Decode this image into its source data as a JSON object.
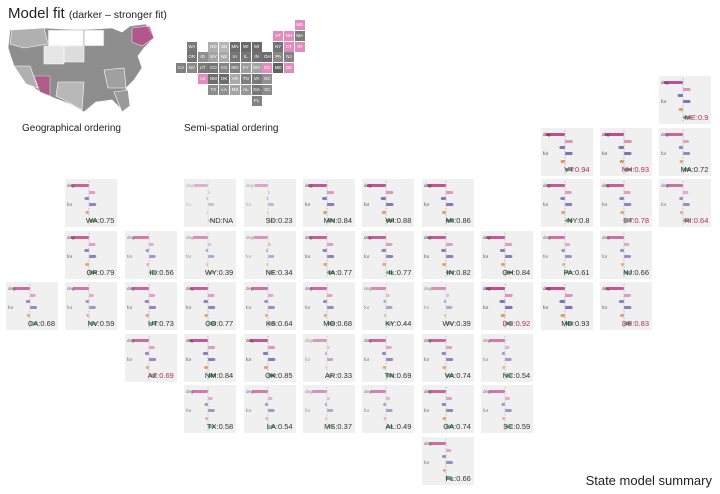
{
  "title": "Model fit",
  "subtitle": "(darker – stronger fit)",
  "captions": {
    "geo": "Geographical ordering",
    "semi": "Semi-spatial ordering"
  },
  "footer": "State model summary",
  "colors": {
    "deg": "#c2418a",
    "gov": "#e08cbd",
    "old": "#7b6bb6",
    "for": "#7b6bb6",
    "mar": "#e8925a",
    "pd": "#5aa37d",
    "highlight": "#b03060",
    "tile": "#f0f0f0",
    "axis": "#888888"
  },
  "chart_data": {
    "type": "bar",
    "variables": [
      "deg",
      "gov",
      "old",
      "for",
      "mar",
      "p-d"
    ],
    "states": [
      {
        "state": "ME",
        "fit": 0.9,
        "highlight": true
      },
      {
        "state": "VT",
        "fit": 0.94,
        "highlight": true
      },
      {
        "state": "NH",
        "fit": 0.93,
        "highlight": true
      },
      {
        "state": "MA",
        "fit": 0.72
      },
      {
        "state": "WA",
        "fit": 0.75
      },
      {
        "state": "ND",
        "fit": null,
        "fit_text": "NA"
      },
      {
        "state": "SD",
        "fit": 0.23
      },
      {
        "state": "MN",
        "fit": 0.84
      },
      {
        "state": "WI",
        "fit": 0.88
      },
      {
        "state": "MI",
        "fit": 0.86
      },
      {
        "state": "NY",
        "fit": 0.8
      },
      {
        "state": "CT",
        "fit": 0.78,
        "highlight": true
      },
      {
        "state": "RI",
        "fit": 0.64,
        "highlight": true
      },
      {
        "state": "OR",
        "fit": 0.79
      },
      {
        "state": "ID",
        "fit": 0.56
      },
      {
        "state": "WY",
        "fit": 0.39
      },
      {
        "state": "NE",
        "fit": 0.34
      },
      {
        "state": "IA",
        "fit": 0.77
      },
      {
        "state": "IL",
        "fit": 0.77
      },
      {
        "state": "IN",
        "fit": 0.82
      },
      {
        "state": "OH",
        "fit": 0.84
      },
      {
        "state": "PA",
        "fit": 0.61
      },
      {
        "state": "NJ",
        "fit": 0.66
      },
      {
        "state": "CA",
        "fit": 0.68
      },
      {
        "state": "NV",
        "fit": 0.59
      },
      {
        "state": "UT",
        "fit": 0.73
      },
      {
        "state": "CO",
        "fit": 0.77
      },
      {
        "state": "KS",
        "fit": 0.64
      },
      {
        "state": "MO",
        "fit": 0.68
      },
      {
        "state": "KY",
        "fit": 0.44
      },
      {
        "state": "WV",
        "fit": 0.39
      },
      {
        "state": "DC",
        "fit": 0.92,
        "highlight": true
      },
      {
        "state": "MD",
        "fit": 0.93
      },
      {
        "state": "DE",
        "fit": 0.83,
        "highlight": true
      },
      {
        "state": "AZ",
        "fit": 0.69,
        "highlight": true
      },
      {
        "state": "NM",
        "fit": 0.84
      },
      {
        "state": "OK",
        "fit": 0.85
      },
      {
        "state": "AR",
        "fit": 0.33
      },
      {
        "state": "TN",
        "fit": 0.69
      },
      {
        "state": "VA",
        "fit": 0.74
      },
      {
        "state": "NC",
        "fit": 0.54
      },
      {
        "state": "TX",
        "fit": 0.58
      },
      {
        "state": "LA",
        "fit": 0.54
      },
      {
        "state": "MS",
        "fit": 0.37
      },
      {
        "state": "AL",
        "fit": 0.49
      },
      {
        "state": "GA",
        "fit": 0.74
      },
      {
        "state": "SC",
        "fit": 0.59
      },
      {
        "state": "FL",
        "fit": 0.66
      }
    ]
  }
}
